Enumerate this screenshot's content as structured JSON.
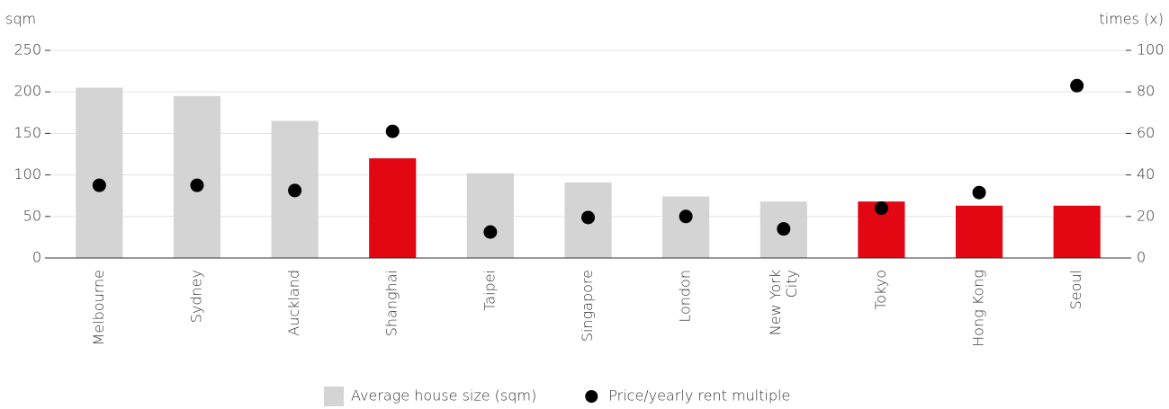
{
  "chart_data": {
    "type": "bar",
    "y_label": "sqm",
    "y2_label": "times (x)",
    "categories": [
      "Melbourne",
      "Sydney",
      "Auckland",
      "Shanghai",
      "Taipei",
      "Singapore",
      "London",
      "New York City",
      "Tokyo",
      "Hong Kong",
      "Seoul"
    ],
    "series": [
      {
        "name": "Average house size (sqm)",
        "type": "bar",
        "color": "#d4d4d4",
        "colors": [
          "#d4d4d4",
          "#d4d4d4",
          "#d4d4d4",
          "#e30613",
          "#d4d4d4",
          "#d4d4d4",
          "#d4d4d4",
          "#d4d4d4",
          "#e30613",
          "#e30613",
          "#e30613"
        ],
        "values": [
          205,
          195,
          165,
          120,
          102,
          91,
          74,
          68,
          68,
          63,
          63
        ]
      },
      {
        "name": "Price/yearly rent multiple",
        "type": "scatter",
        "axis": "y2",
        "color": "#000000",
        "values": [
          35,
          35,
          32.5,
          61,
          12.5,
          19.5,
          20,
          14,
          24,
          31.5,
          83
        ]
      }
    ],
    "ylim": [
      0,
      250
    ],
    "yticks": [
      0,
      50,
      100,
      150,
      200,
      250
    ],
    "y2lim": [
      0,
      100
    ],
    "y2ticks": [
      0,
      20,
      40,
      60,
      80,
      100
    ],
    "grid": true
  }
}
